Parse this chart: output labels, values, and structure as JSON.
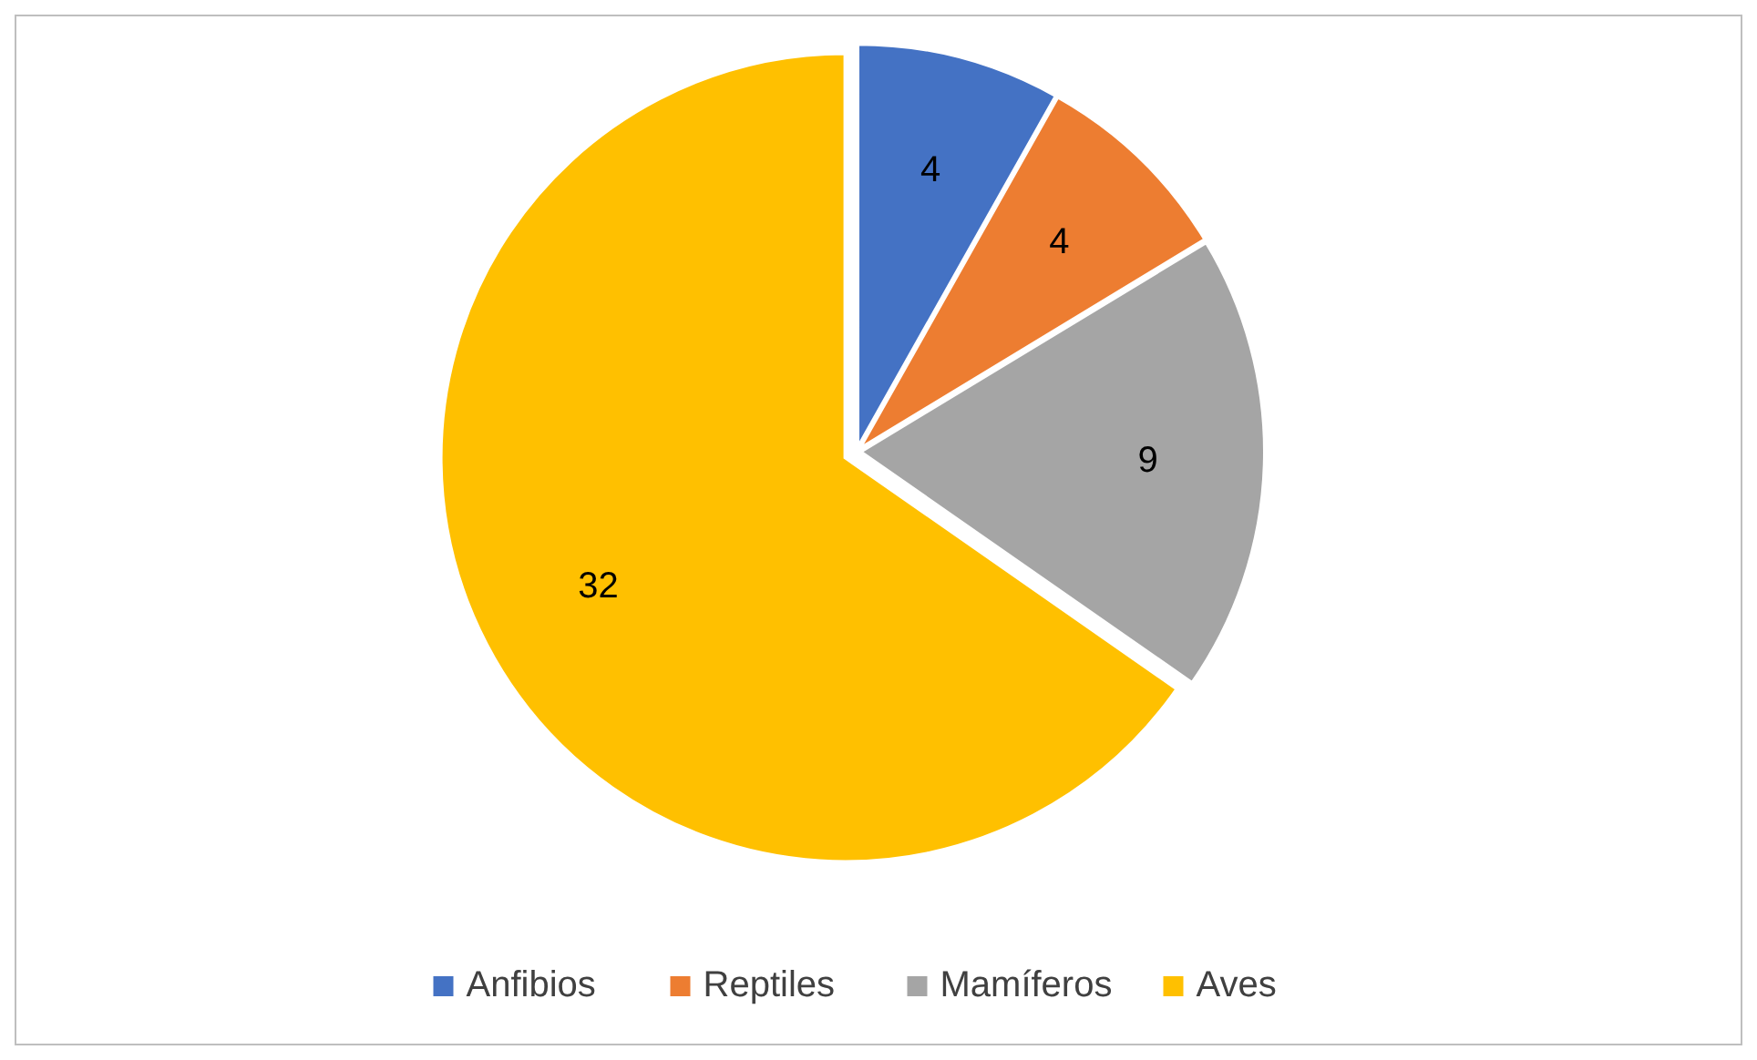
{
  "chart_data": {
    "type": "pie",
    "categories": [
      "Anfibios",
      "Reptiles",
      "Mamíferos",
      "Aves"
    ],
    "values": [
      4,
      4,
      9,
      32
    ],
    "colors": [
      "#4472c4",
      "#ed7d31",
      "#a5a5a5",
      "#ffc000"
    ],
    "data_labels": true,
    "legend": "bottom"
  }
}
